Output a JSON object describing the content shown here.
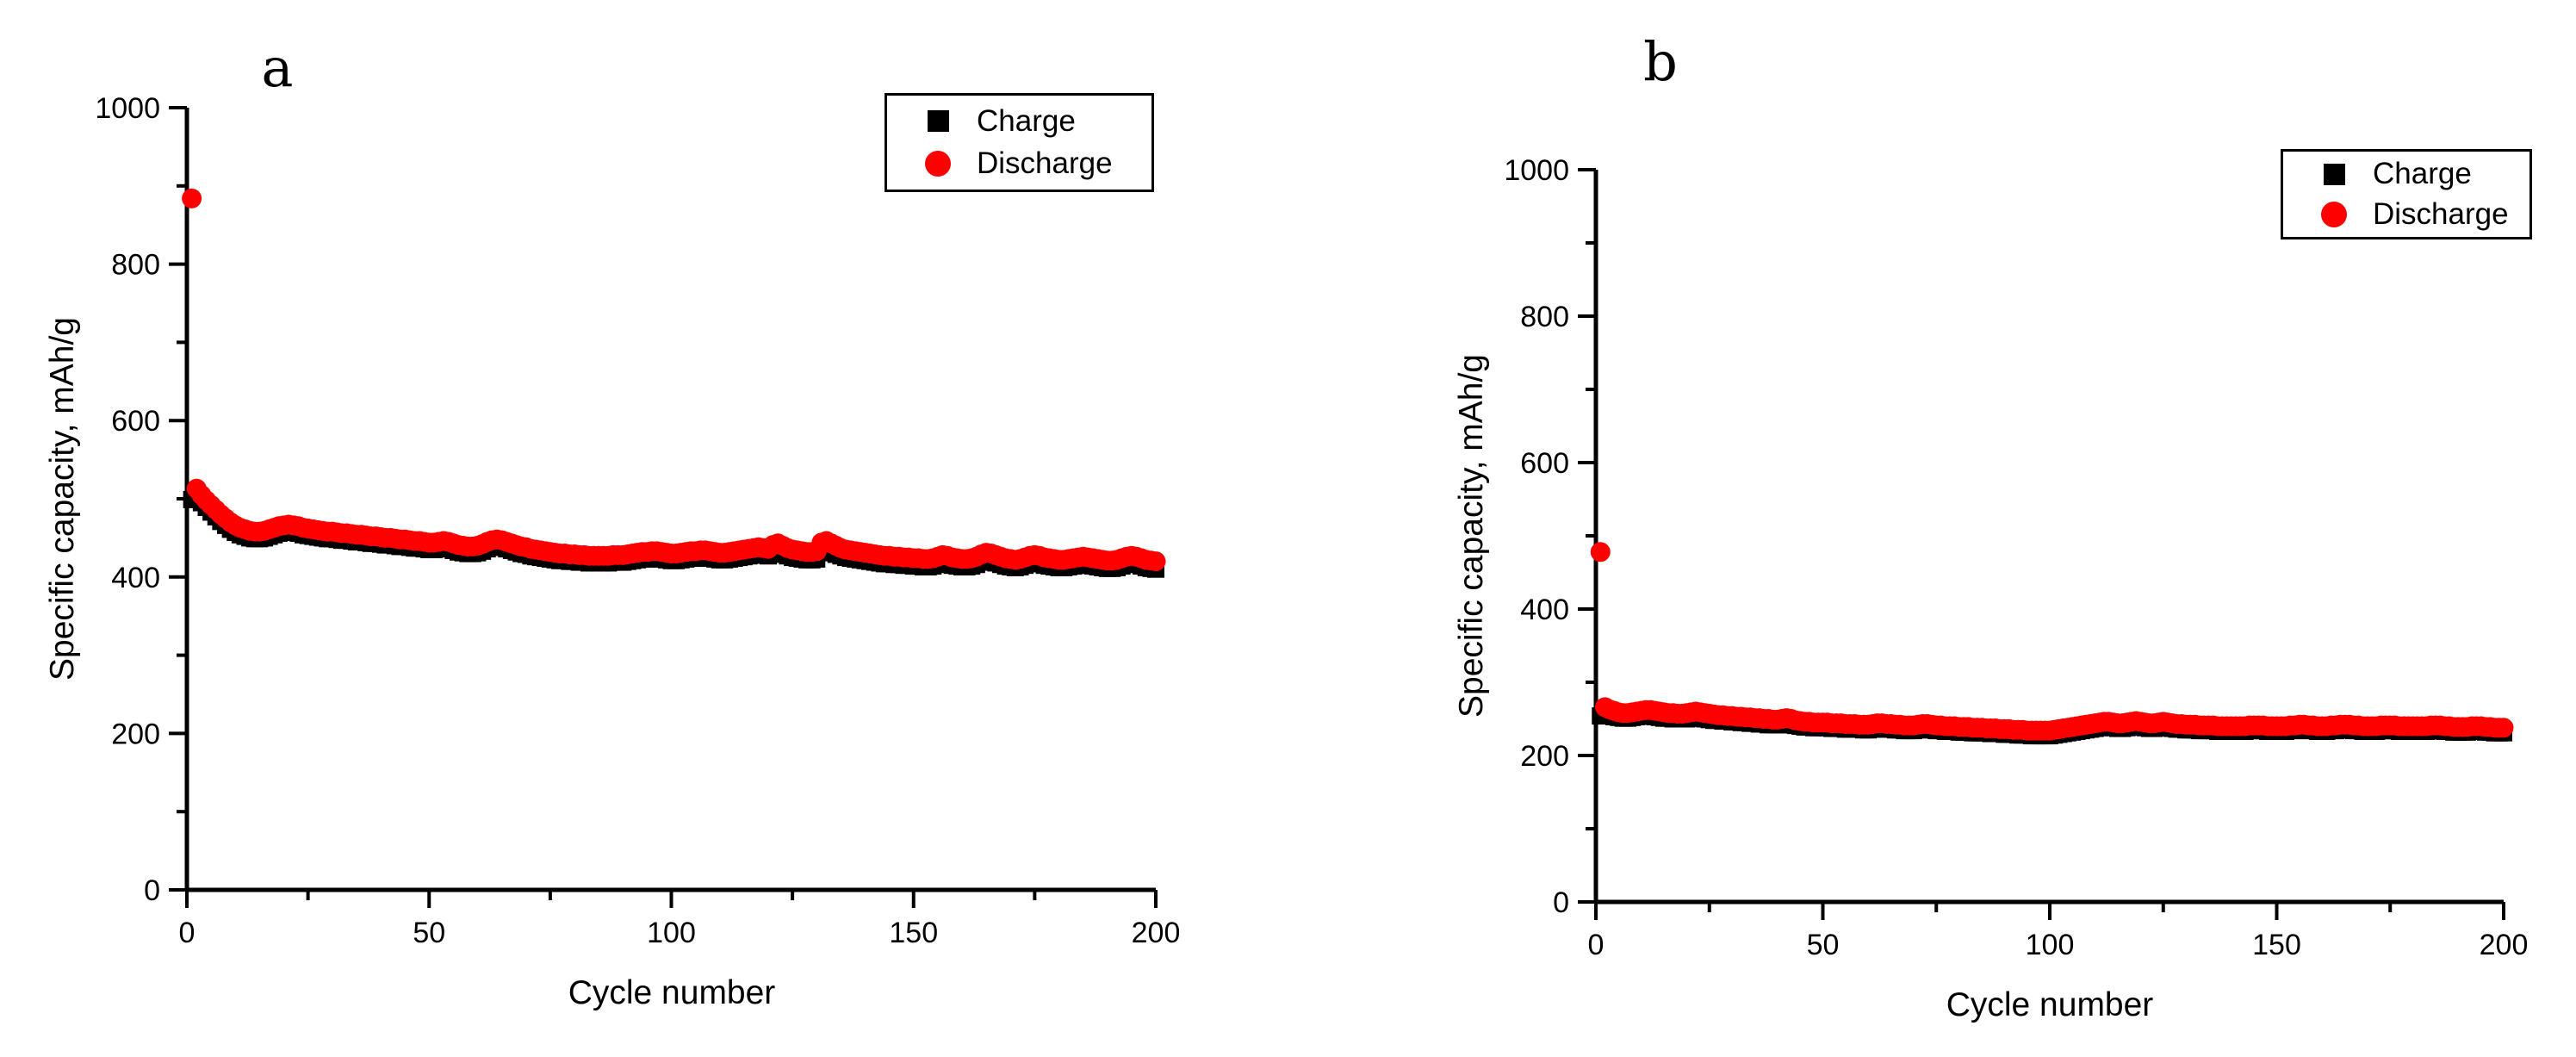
{
  "figure": {
    "background": "#ffffff",
    "colors": {
      "charge": "#000000",
      "discharge": "#ff0000",
      "axis": "#000000"
    }
  },
  "chart_data": [
    {
      "type": "scatter",
      "panel_label": "a",
      "xlabel": "Cycle number",
      "ylabel": "Specific capacity, mAh/g",
      "xlim": [
        0,
        200
      ],
      "ylim": [
        0,
        1000
      ],
      "x_ticks": [
        0,
        50,
        100,
        150,
        200
      ],
      "x_minor_ticks": [
        25,
        75,
        125,
        175
      ],
      "y_ticks": [
        0,
        200,
        400,
        600,
        800,
        1000
      ],
      "y_minor_ticks": [
        100,
        300,
        500,
        700,
        900
      ],
      "grid": false,
      "legend_position": "top-right",
      "x_start": 1,
      "x_step": 1,
      "series": [
        {
          "name": "Charge",
          "marker": "square",
          "color": "#000000",
          "values": [
            499,
            501,
            495,
            489,
            483,
            477,
            471,
            466,
            461,
            457,
            454,
            452,
            450,
            449,
            449,
            450,
            452,
            454,
            456,
            457,
            458,
            457,
            456,
            454,
            453,
            452,
            451,
            450,
            449,
            449,
            448,
            447,
            447,
            446,
            445,
            445,
            444,
            443,
            443,
            442,
            441,
            441,
            440,
            439,
            439,
            438,
            437,
            437,
            436,
            435,
            435,
            436,
            437,
            436,
            434,
            432,
            431,
            430,
            430,
            431,
            433,
            436,
            438,
            439,
            438,
            436,
            434,
            432,
            430,
            429,
            427,
            426,
            425,
            424,
            423,
            422,
            421,
            421,
            420,
            420,
            419,
            419,
            418,
            418,
            418,
            418,
            418,
            419,
            419,
            419,
            420,
            421,
            422,
            423,
            423,
            424,
            424,
            423,
            422,
            421,
            421,
            422,
            423,
            424,
            424,
            425,
            425,
            424,
            423,
            422,
            422,
            423,
            424,
            425,
            426,
            427,
            428,
            429,
            428,
            427,
            430,
            432,
            429,
            427,
            425,
            424,
            423,
            422,
            422,
            423,
            432,
            434,
            431,
            429,
            427,
            425,
            424,
            423,
            422,
            421,
            420,
            419,
            418,
            417,
            417,
            416,
            416,
            415,
            415,
            414,
            414,
            413,
            413,
            414,
            416,
            418,
            417,
            415,
            414,
            413,
            413,
            414,
            416,
            419,
            421,
            420,
            418,
            416,
            414,
            413,
            412,
            413,
            415,
            417,
            418,
            417,
            415,
            414,
            413,
            412,
            412,
            413,
            414,
            415,
            416,
            415,
            414,
            413,
            412,
            411,
            411,
            412,
            414,
            416,
            417,
            416,
            414,
            412,
            411,
            410
          ]
        },
        {
          "name": "Discharge",
          "marker": "circle",
          "color": "#ff0000",
          "values": [
            884,
            513,
            505,
            498,
            492,
            486,
            480,
            475,
            470,
            466,
            463,
            461,
            459,
            458,
            458,
            459,
            461,
            463,
            465,
            466,
            467,
            466,
            465,
            463,
            462,
            461,
            460,
            459,
            458,
            458,
            457,
            456,
            456,
            455,
            454,
            454,
            453,
            452,
            452,
            451,
            450,
            450,
            449,
            448,
            448,
            447,
            446,
            446,
            445,
            444,
            444,
            445,
            446,
            445,
            443,
            441,
            440,
            439,
            439,
            440,
            442,
            445,
            447,
            448,
            447,
            445,
            443,
            441,
            439,
            438,
            436,
            435,
            434,
            433,
            432,
            431,
            430,
            430,
            429,
            429,
            428,
            428,
            427,
            427,
            427,
            427,
            427,
            428,
            428,
            428,
            429,
            430,
            431,
            432,
            432,
            433,
            433,
            432,
            431,
            430,
            430,
            431,
            432,
            433,
            433,
            434,
            434,
            433,
            432,
            431,
            431,
            432,
            433,
            434,
            435,
            436,
            437,
            438,
            437,
            436,
            441,
            443,
            440,
            437,
            435,
            434,
            433,
            432,
            432,
            433,
            444,
            446,
            443,
            440,
            437,
            435,
            434,
            433,
            432,
            431,
            430,
            429,
            428,
            427,
            427,
            426,
            426,
            425,
            425,
            424,
            424,
            423,
            423,
            424,
            426,
            428,
            427,
            425,
            424,
            423,
            423,
            424,
            426,
            429,
            431,
            430,
            428,
            426,
            424,
            423,
            422,
            423,
            425,
            427,
            428,
            427,
            425,
            424,
            423,
            422,
            422,
            423,
            424,
            425,
            426,
            425,
            424,
            423,
            422,
            421,
            421,
            422,
            424,
            426,
            427,
            426,
            424,
            422,
            421,
            420
          ]
        }
      ]
    },
    {
      "type": "scatter",
      "panel_label": "b",
      "xlabel": "Cycle number",
      "ylabel": "Specific capacity, mAh/g",
      "xlim": [
        0,
        200
      ],
      "ylim": [
        0,
        1000
      ],
      "x_ticks": [
        0,
        50,
        100,
        150,
        200
      ],
      "x_minor_ticks": [
        25,
        75,
        125,
        175
      ],
      "y_ticks": [
        0,
        200,
        400,
        600,
        800,
        1000
      ],
      "y_minor_ticks": [
        100,
        300,
        500,
        700,
        900
      ],
      "grid": false,
      "legend_position": "top-right",
      "x_start": 1,
      "x_step": 1,
      "series": [
        {
          "name": "Charge",
          "marker": "square",
          "color": "#000000",
          "values": [
            254,
            257,
            255,
            253,
            252,
            251,
            251,
            252,
            253,
            254,
            254,
            254,
            253,
            252,
            251,
            251,
            250,
            250,
            250,
            250,
            251,
            252,
            251,
            250,
            249,
            248,
            248,
            247,
            247,
            246,
            246,
            245,
            245,
            244,
            244,
            243,
            243,
            242,
            242,
            242,
            242,
            243,
            242,
            241,
            240,
            239,
            239,
            238,
            238,
            238,
            238,
            237,
            237,
            237,
            236,
            236,
            236,
            236,
            235,
            235,
            236,
            237,
            237,
            236,
            236,
            235,
            235,
            234,
            234,
            234,
            235,
            236,
            236,
            235,
            234,
            234,
            233,
            233,
            233,
            232,
            232,
            232,
            231,
            231,
            231,
            231,
            230,
            230,
            230,
            229,
            229,
            229,
            228,
            228,
            228,
            227,
            227,
            227,
            227,
            227,
            228,
            229,
            230,
            231,
            232,
            233,
            234,
            235,
            236,
            237,
            238,
            239,
            239,
            238,
            237,
            237,
            238,
            239,
            240,
            239,
            238,
            237,
            237,
            238,
            239,
            238,
            237,
            236,
            236,
            235,
            235,
            235,
            234,
            234,
            234,
            234,
            233,
            233,
            233,
            233,
            233,
            233,
            233,
            234,
            234,
            234,
            234,
            233,
            233,
            233,
            233,
            233,
            234,
            234,
            235,
            235,
            234,
            234,
            233,
            233,
            233,
            234,
            234,
            235,
            235,
            235,
            234,
            234,
            233,
            233,
            233,
            233,
            234,
            234,
            234,
            234,
            233,
            233,
            233,
            233,
            233,
            233,
            233,
            234,
            234,
            234,
            233,
            233,
            232,
            232,
            232,
            232,
            233,
            233,
            233,
            232,
            232,
            231,
            231,
            231
          ]
        },
        {
          "name": "Discharge",
          "marker": "circle",
          "color": "#ff0000",
          "values": [
            478,
            266,
            263,
            261,
            259,
            258,
            258,
            259,
            260,
            261,
            262,
            262,
            261,
            260,
            259,
            258,
            258,
            257,
            257,
            258,
            259,
            260,
            259,
            258,
            257,
            256,
            255,
            255,
            254,
            254,
            253,
            253,
            252,
            252,
            251,
            251,
            250,
            250,
            249,
            249,
            250,
            251,
            250,
            248,
            247,
            246,
            246,
            245,
            245,
            245,
            245,
            244,
            244,
            244,
            243,
            243,
            243,
            242,
            242,
            242,
            243,
            244,
            244,
            243,
            243,
            242,
            242,
            241,
            241,
            241,
            242,
            243,
            243,
            242,
            241,
            241,
            240,
            240,
            240,
            239,
            239,
            239,
            238,
            238,
            238,
            237,
            237,
            237,
            236,
            236,
            236,
            235,
            235,
            235,
            234,
            234,
            234,
            234,
            234,
            234,
            235,
            236,
            237,
            238,
            239,
            240,
            241,
            242,
            243,
            244,
            245,
            246,
            246,
            245,
            244,
            244,
            245,
            246,
            247,
            246,
            245,
            244,
            244,
            245,
            246,
            245,
            244,
            243,
            243,
            242,
            242,
            242,
            241,
            241,
            241,
            241,
            240,
            240,
            240,
            240,
            240,
            240,
            240,
            241,
            241,
            241,
            241,
            240,
            240,
            240,
            240,
            240,
            241,
            241,
            242,
            242,
            241,
            241,
            240,
            240,
            240,
            241,
            241,
            242,
            242,
            242,
            241,
            241,
            240,
            240,
            240,
            240,
            241,
            241,
            241,
            241,
            240,
            240,
            240,
            240,
            240,
            240,
            240,
            241,
            241,
            241,
            240,
            240,
            239,
            239,
            239,
            239,
            240,
            240,
            240,
            239,
            239,
            238,
            238,
            238
          ]
        }
      ]
    }
  ]
}
